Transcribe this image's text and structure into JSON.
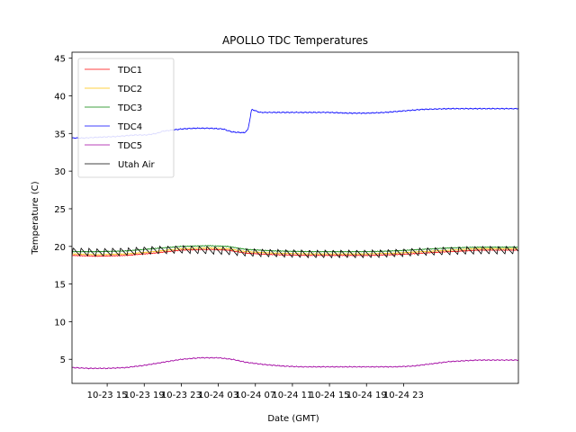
{
  "chart_data": {
    "type": "line",
    "title": "APOLLO TDC Temperatures",
    "xlabel": "Date (GMT)",
    "ylabel": "Temperature (C)",
    "xlim": [
      11.2,
      59.4
    ],
    "ylim": [
      1.8,
      45.8
    ],
    "legend_location": "top-left",
    "x_unit": "hours since 10-23 00:00 GMT",
    "x_ticks": [
      {
        "value": 15,
        "label": "10-23 15"
      },
      {
        "value": 19,
        "label": "10-23 19"
      },
      {
        "value": 23,
        "label": "10-23 23"
      },
      {
        "value": 27,
        "label": "10-24 03"
      },
      {
        "value": 31,
        "label": "10-24 07"
      },
      {
        "value": 35,
        "label": "10-24 11"
      },
      {
        "value": 39,
        "label": "10-24 15"
      },
      {
        "value": 43,
        "label": "10-24 19"
      },
      {
        "value": 47,
        "label": "10-24 23"
      }
    ],
    "y_ticks": [
      5,
      10,
      15,
      20,
      25,
      30,
      35,
      40,
      45
    ],
    "series": [
      {
        "name": "TDC1",
        "color": "#ff0000",
        "x": [
          11.2,
          14,
          17,
          20,
          23,
          26,
          28,
          30,
          33,
          37,
          40,
          43,
          46,
          49,
          52,
          55,
          59.4
        ],
        "y": [
          18.8,
          18.7,
          18.8,
          19.1,
          19.5,
          19.6,
          19.5,
          19.1,
          18.9,
          18.8,
          18.8,
          18.8,
          18.9,
          19.1,
          19.3,
          19.5,
          19.5
        ]
      },
      {
        "name": "TDC2",
        "color": "#ffc000",
        "x": [
          11.2,
          14,
          17,
          20,
          23,
          26,
          28,
          30,
          33,
          37,
          40,
          43,
          46,
          49,
          52,
          55,
          59.4
        ],
        "y": [
          19.0,
          18.9,
          19.0,
          19.3,
          19.7,
          19.8,
          19.7,
          19.3,
          19.1,
          19.0,
          19.0,
          19.0,
          19.1,
          19.3,
          19.5,
          19.7,
          19.7
        ]
      },
      {
        "name": "TDC3",
        "color": "#008000",
        "x": [
          11.2,
          14,
          17,
          20,
          23,
          26,
          28,
          30,
          33,
          37,
          40,
          43,
          46,
          49,
          52,
          55,
          59.4
        ],
        "y": [
          19.3,
          19.3,
          19.4,
          19.7,
          20.0,
          20.1,
          20.0,
          19.6,
          19.4,
          19.3,
          19.3,
          19.3,
          19.4,
          19.6,
          19.8,
          19.9,
          19.9
        ]
      },
      {
        "name": "TDC4",
        "color": "#0000ff",
        "x": [
          11.2,
          12.5,
          14,
          16,
          18,
          19.2,
          20.3,
          21,
          23,
          24.5,
          26,
          27.5,
          28.5,
          29.8,
          30.2,
          30.6,
          31.5,
          33,
          35,
          37,
          39,
          41,
          43,
          45,
          47,
          49,
          52,
          55,
          59.4
        ],
        "y": [
          34.4,
          34.4,
          34.5,
          34.6,
          34.8,
          34.8,
          35.0,
          35.3,
          35.6,
          35.7,
          35.7,
          35.6,
          35.2,
          35.1,
          35.5,
          38.2,
          37.8,
          37.8,
          37.8,
          37.8,
          37.8,
          37.7,
          37.7,
          37.8,
          38.0,
          38.2,
          38.3,
          38.3,
          38.3
        ]
      },
      {
        "name": "TDC5",
        "color": "#a000a0",
        "x": [
          11.2,
          13,
          15,
          17,
          19,
          21,
          23,
          25,
          27,
          28.5,
          30,
          32,
          34,
          36,
          38,
          40,
          42,
          44,
          46,
          48,
          50,
          52,
          55,
          59.4
        ],
        "y": [
          3.9,
          3.8,
          3.8,
          3.9,
          4.2,
          4.6,
          5.0,
          5.2,
          5.2,
          5.0,
          4.6,
          4.3,
          4.1,
          4.0,
          4.0,
          4.0,
          4.0,
          4.0,
          4.0,
          4.1,
          4.4,
          4.7,
          4.9,
          4.9
        ]
      },
      {
        "name": "Utah Air",
        "color": "#000000",
        "sawtooth": {
          "period_hours": 0.85,
          "low": 18.9,
          "high": 19.9
        },
        "x": [
          11.2,
          14,
          17,
          20,
          23,
          26,
          28,
          30,
          33,
          37,
          40,
          43,
          46,
          49,
          52,
          55,
          59.4
        ],
        "y": [
          19.3,
          19.2,
          19.3,
          19.5,
          19.6,
          19.5,
          19.4,
          19.2,
          19.1,
          19.0,
          19.0,
          19.0,
          19.1,
          19.3,
          19.4,
          19.5,
          19.5
        ]
      }
    ]
  }
}
